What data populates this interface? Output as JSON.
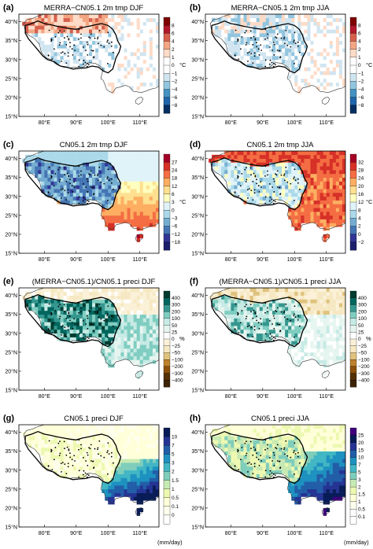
{
  "panels": [
    {
      "label": "(a)",
      "title": "MERRA−CN05.1 2m tmp DJF",
      "colorbar": [
        "8",
        "6",
        "4",
        "2",
        "1",
        "0",
        "−1",
        "−2",
        "−4",
        "−6",
        "−8"
      ],
      "unit": "°C",
      "unit_pos": "side",
      "colors": [
        "#7f0000",
        "#b2182b",
        "#d6604d",
        "#f4a582",
        "#fddbc7",
        "#ffffff",
        "#ffffff",
        "#d1e5f0",
        "#92c5de",
        "#4393c3",
        "#2166ac",
        "#053061"
      ],
      "scheme": "anomaly_djf"
    },
    {
      "label": "(b)",
      "title": "MERRA−CN05.1 2m tmp JJA",
      "colorbar": [
        "8",
        "6",
        "4",
        "2",
        "1",
        "0",
        "−1",
        "−2",
        "−4",
        "−6",
        "−8"
      ],
      "unit": "°C",
      "unit_pos": "side",
      "colors": [
        "#7f0000",
        "#b2182b",
        "#d6604d",
        "#f4a582",
        "#fddbc7",
        "#ffffff",
        "#ffffff",
        "#d1e5f0",
        "#92c5de",
        "#4393c3",
        "#2166ac",
        "#053061"
      ],
      "scheme": "anomaly_jja"
    },
    {
      "label": "(c)",
      "title": "CN05.1 2m tmp DJF",
      "colorbar": [
        "27",
        "24",
        "18",
        "12",
        "6",
        "3",
        "0",
        "−3",
        "−6",
        "−12",
        "−18"
      ],
      "unit": "°C",
      "unit_pos": "side",
      "colors": [
        "#a50026",
        "#d73027",
        "#f46d43",
        "#fdae61",
        "#fee090",
        "#ffffbf",
        "#e0f3f8",
        "#abd9e9",
        "#74add1",
        "#4575b4",
        "#313695",
        "#1c1f6b"
      ],
      "scheme": "clim_djf"
    },
    {
      "label": "(d)",
      "title": "CN05.1 2m tmp JJA",
      "colorbar": [
        "32",
        "28",
        "24",
        "20",
        "16",
        "12",
        "8",
        "4",
        "2",
        "0",
        "−2"
      ],
      "unit": "°C",
      "unit_pos": "side",
      "colors": [
        "#a50026",
        "#d73027",
        "#f46d43",
        "#fdae61",
        "#fee090",
        "#ffffbf",
        "#e0f3f8",
        "#abd9e9",
        "#74add1",
        "#4575b4",
        "#313695",
        "#1c1f6b"
      ],
      "scheme": "clim_jja"
    },
    {
      "label": "(e)",
      "title": "(MERRA−CN05.1)/CN05.1 preci DJF",
      "colorbar": [
        "400",
        "300",
        "200",
        "100",
        "50",
        "25",
        "0",
        "−25",
        "−50",
        "−100",
        "−200",
        "−300",
        "−400"
      ],
      "unit": "%",
      "unit_pos": "side",
      "colors": [
        "#003c30",
        "#01665e",
        "#35978f",
        "#80cdc1",
        "#c7eae5",
        "#e6f5f0",
        "#ffffff",
        "#fbf1d8",
        "#f6e8c3",
        "#dfc27d",
        "#bf812d",
        "#8c510a",
        "#543005",
        "#3d2304"
      ],
      "scheme": "pct_djf"
    },
    {
      "label": "(f)",
      "title": "(MERRA−CN05.1)/CN05.1 preci JJA",
      "colorbar": [
        "400",
        "300",
        "200",
        "100",
        "50",
        "25",
        "0",
        "−25",
        "−50",
        "−100",
        "−200",
        "−300",
        "−400"
      ],
      "unit": "%",
      "unit_pos": "side",
      "colors": [
        "#003c30",
        "#01665e",
        "#35978f",
        "#80cdc1",
        "#c7eae5",
        "#e6f5f0",
        "#ffffff",
        "#fbf1d8",
        "#f6e8c3",
        "#dfc27d",
        "#bf812d",
        "#8c510a",
        "#543005",
        "#3d2304"
      ],
      "scheme": "pct_jja"
    },
    {
      "label": "(g)",
      "title": "CN05.1 preci DJF",
      "colorbar": [
        "10",
        "7",
        "5",
        "3",
        "2",
        "1.5",
        "1",
        "0.5",
        "0.1",
        "0"
      ],
      "unit": "(mm/day)",
      "unit_pos": "bottom",
      "colors": [
        "#081d58",
        "#253494",
        "#225ea8",
        "#1d91c0",
        "#41b6c4",
        "#7fcdbb",
        "#c7e9b4",
        "#edf8b1",
        "#ffffd9",
        "#ffffee",
        "#ffffff"
      ],
      "scheme": "pr_djf"
    },
    {
      "label": "(h)",
      "title": "CN05.1 preci JJA",
      "colorbar": [
        "25",
        "20",
        "15",
        "10",
        "7",
        "5",
        "3",
        "2",
        "1.5",
        "1",
        "0.5",
        "0.1"
      ],
      "unit": "(mm/day)",
      "unit_pos": "bottom",
      "colors": [
        "#3f007d",
        "#081d58",
        "#253494",
        "#225ea8",
        "#1d91c0",
        "#41b6c4",
        "#7fcdbb",
        "#c7e9b4",
        "#edf8b1",
        "#ffffd9",
        "#ffffee",
        "#ffffff",
        "#ffffff"
      ],
      "scheme": "pr_jja"
    }
  ],
  "axes": {
    "lon_ticks": [
      "80°E",
      "90°E",
      "100°E",
      "110°E"
    ],
    "lat_ticks": [
      "40°N",
      "35°N",
      "30°N",
      "25°N",
      "20°N",
      "15°N"
    ]
  }
}
